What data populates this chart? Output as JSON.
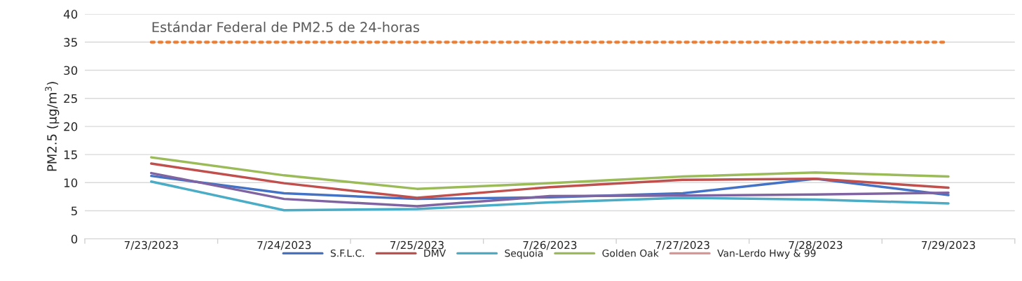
{
  "chart_data": {
    "type": "line",
    "ylabel": "PM2.5 (µg/m$^{3}$)",
    "categories": [
      "7/23/2023",
      "7/24/2023",
      "7/25/2023",
      "7/26/2023",
      "7/27/2023",
      "7/28/2023",
      "7/29/2023"
    ],
    "series": [
      {
        "name": "S.F.L.C.",
        "color": "#4472c4",
        "values": [
          11.2,
          8.1,
          7.1,
          7.4,
          8.1,
          10.7,
          7.8
        ]
      },
      {
        "name": "DMV",
        "color": "#c0504d",
        "values": [
          13.4,
          9.9,
          7.3,
          9.2,
          10.5,
          10.7,
          9.1
        ]
      },
      {
        "color": "#8064a2",
        "values": [
          11.7,
          7.1,
          5.8,
          7.6,
          7.7,
          7.9,
          8.2
        ]
      },
      {
        "name": "Sequoia",
        "color": "#4bacc6",
        "values": [
          10.2,
          5.1,
          5.3,
          6.5,
          7.3,
          7.0,
          6.3
        ]
      },
      {
        "name": "Golden Oak",
        "color": "#9bbb59",
        "values": [
          14.5,
          11.3,
          8.9,
          9.9,
          11.1,
          11.8,
          11.1
        ]
      },
      {
        "name": "Van-Lerdo Hwy & 99",
        "color": "#d99694",
        "values": [
          null,
          null,
          null,
          null,
          null,
          null,
          null
        ]
      }
    ],
    "ref_lines": [
      {
        "axis": "y",
        "value": 35,
        "label": "Estándar Federal de PM2.5 de 24-horas",
        "color": "#ed7d31",
        "line_style": "dotted"
      }
    ],
    "ylim": [
      0,
      40
    ],
    "yticks": [
      0,
      5,
      10,
      15,
      20,
      25,
      30,
      35,
      40
    ],
    "grid": "y",
    "legend": "bottom"
  }
}
